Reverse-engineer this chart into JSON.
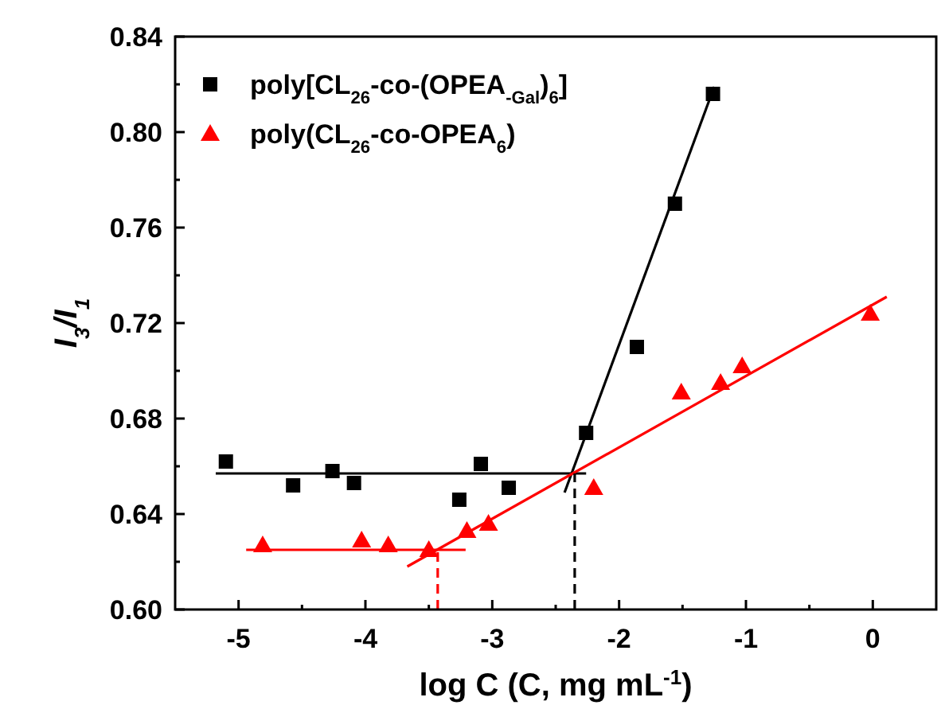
{
  "chart_data": {
    "type": "scatter",
    "xlabel": "log C (C, mg mL$^{-1}$)",
    "ylabel": "I$_{3}$/I$_{1}$",
    "xlim": [
      -5.5,
      0.5
    ],
    "ylim": [
      0.6,
      0.84
    ],
    "xticks": [
      -5,
      {
        "value": -4.5,
        "label": null
      },
      -4,
      {
        "value": -3.5,
        "label": null
      },
      -3,
      {
        "value": -2.5,
        "label": null
      },
      -2,
      {
        "value": -1.5,
        "label": null
      },
      -1,
      {
        "value": -0.5,
        "label": null
      },
      0
    ],
    "yticks": [
      {
        "value": 0.6,
        "label": "0.60"
      },
      {
        "value": 0.62,
        "label": null
      },
      {
        "value": 0.64,
        "label": "0.64"
      },
      {
        "value": 0.66,
        "label": null
      },
      {
        "value": 0.68,
        "label": "0.68"
      },
      {
        "value": 0.7,
        "label": null
      },
      {
        "value": 0.72,
        "label": "0.72"
      },
      {
        "value": 0.74,
        "label": null
      },
      {
        "value": 0.76,
        "label": "0.76"
      },
      {
        "value": 0.78,
        "label": null
      },
      {
        "value": 0.8,
        "label": "0.80"
      },
      {
        "value": 0.82,
        "label": null
      },
      {
        "value": 0.84,
        "label": "0.84"
      }
    ],
    "grid": false,
    "legend": "top left",
    "series": [
      {
        "name": "poly[CL$_{26}$-co-(OPEA$_{-Gal}$)$_{6}$]",
        "marker": "square",
        "color": "#000000",
        "x": [
          -5.1,
          -4.57,
          -4.26,
          -4.09,
          -3.26,
          -3.09,
          -2.87,
          -2.26,
          -1.86,
          -1.56,
          -1.26
        ],
        "values": [
          0.662,
          0.652,
          0.658,
          0.653,
          0.646,
          0.661,
          0.651,
          0.674,
          0.71,
          0.77,
          0.816
        ]
      },
      {
        "name": "poly(CL$_{26}$-co-OPEA$_{6}$)",
        "marker": "triangle",
        "color": "#ff0000",
        "x": [
          -4.81,
          -4.03,
          -3.82,
          -3.5,
          -3.2,
          -3.03,
          -2.2,
          -1.51,
          -1.2,
          -1.03,
          -0.02
        ],
        "values": [
          0.627,
          0.629,
          0.627,
          0.625,
          0.633,
          0.636,
          0.651,
          0.691,
          0.695,
          0.702,
          0.724
        ]
      },
      {
        "type": "line",
        "marker": "none",
        "line_style": "solid",
        "color": "#000000",
        "x": [
          -5.18,
          -2.26
        ],
        "values": [
          0.657,
          0.657
        ]
      },
      {
        "type": "line",
        "marker": "none",
        "line_style": "solid",
        "color": "#000000",
        "x": [
          -2.43,
          -1.25
        ],
        "values": [
          0.649,
          0.819
        ]
      },
      {
        "type": "line",
        "marker": "none",
        "line_style": "solid",
        "color": "#ff0000",
        "x": [
          -4.94,
          -3.21
        ],
        "values": [
          0.625,
          0.625
        ]
      },
      {
        "type": "line",
        "marker": "none",
        "line_style": "solid",
        "color": "#ff0000",
        "x": [
          -3.67,
          0.11
        ],
        "values": [
          0.618,
          0.731
        ]
      },
      {
        "type": "line",
        "marker": "none",
        "line_style": "dashed",
        "color": "#000000",
        "x": [
          -2.35,
          -2.35
        ],
        "values": [
          0.6,
          0.657
        ]
      },
      {
        "type": "line",
        "marker": "none",
        "line_style": "dashed",
        "color": "#ff0000",
        "x": [
          -3.43,
          -3.43
        ],
        "values": [
          0.6,
          0.625
        ]
      }
    ]
  }
}
